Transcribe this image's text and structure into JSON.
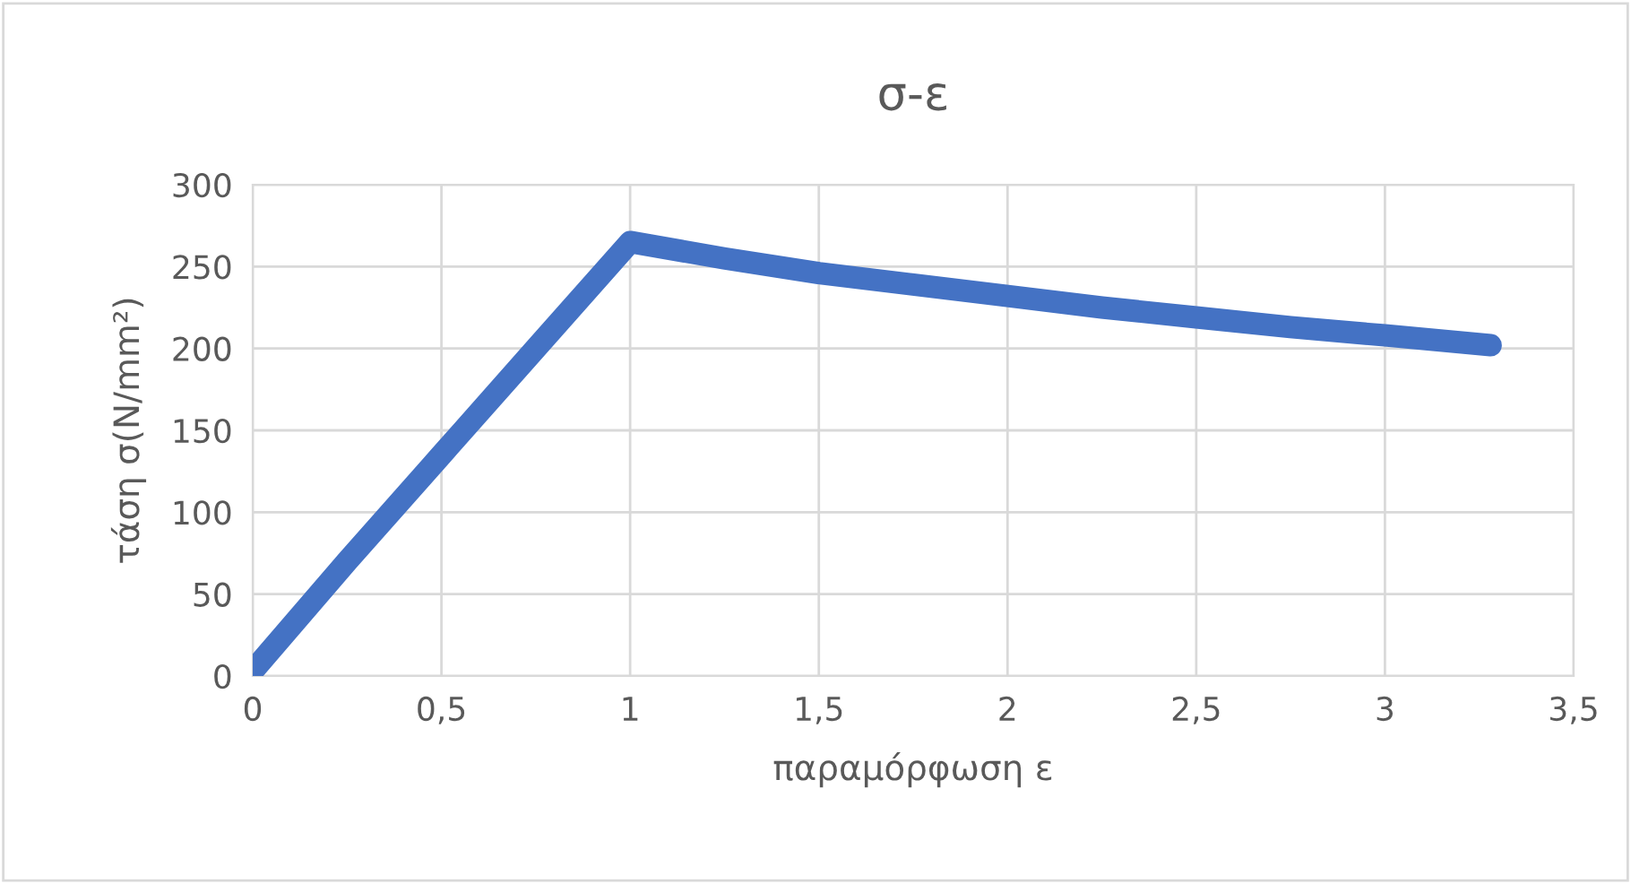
{
  "chart_data": {
    "type": "line",
    "title": "σ-ε",
    "xlabel": "παραμόρφωση ε",
    "ylabel": "τάση σ(N/mm²)",
    "series": [
      {
        "color": "#4472c4",
        "x": [
          0,
          0.25,
          0.5,
          0.75,
          1,
          1.25,
          1.5,
          1.75,
          2,
          2.25,
          2.5,
          2.75,
          3,
          3.28
        ],
        "values": [
          3,
          70,
          135,
          200,
          265,
          255,
          246,
          239,
          232,
          225,
          219,
          213,
          208,
          202
        ]
      }
    ],
    "xlim": [
      0,
      3.5
    ],
    "xticks": [
      0,
      {
        "value": 0.5,
        "label": "0,5"
      },
      1,
      {
        "value": 1.5,
        "label": "1,5"
      },
      2,
      {
        "value": 2.5,
        "label": "2,5"
      },
      3,
      {
        "value": 3.5,
        "label": "3,5"
      }
    ],
    "ylim": [
      0,
      300
    ],
    "yticks": [
      0,
      50,
      100,
      150,
      200,
      250,
      300
    ],
    "grid": true,
    "line_style": "solid"
  }
}
